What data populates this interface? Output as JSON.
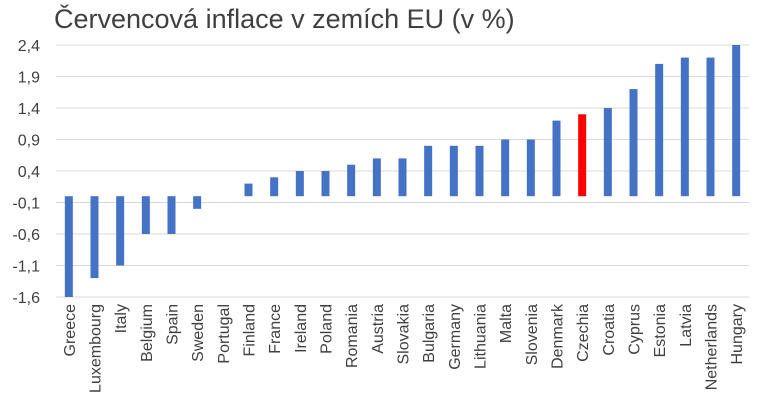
{
  "chart_data": {
    "type": "bar",
    "title": "Červencová inflace v zemích EU (v %)",
    "xlabel": "",
    "ylabel": "",
    "ylim": [
      -1.6,
      2.4
    ],
    "yticks": [
      "2,4",
      "1,9",
      "1,4",
      "0,9",
      "0,4",
      "-0,1",
      "-0,6",
      "-1,1",
      "-1,6"
    ],
    "grid": true,
    "legend": "none",
    "colors": {
      "default": "#4472C4",
      "highlight": "#FF0000",
      "grid": "#D9D9D9",
      "text": "#404040"
    },
    "highlight": "Czechia",
    "categories": [
      "Greece",
      "Luxembourg",
      "Italy",
      "Belgium",
      "Spain",
      "Sweden",
      "Portugal",
      "Finland",
      "France",
      "Ireland",
      "Poland",
      "Romania",
      "Austria",
      "Slovakia",
      "Bulgaria",
      "Germany",
      "Lithuania",
      "Malta",
      "Slovenia",
      "Denmark",
      "Czechia",
      "Croatia",
      "Cyprus",
      "Estonia",
      "Latvia",
      "Netherlands",
      "Hungary"
    ],
    "values": [
      -1.6,
      -1.3,
      -1.1,
      -0.6,
      -0.6,
      -0.2,
      0.0,
      0.2,
      0.3,
      0.4,
      0.4,
      0.5,
      0.6,
      0.6,
      0.8,
      0.8,
      0.8,
      0.9,
      0.9,
      1.2,
      1.3,
      1.4,
      1.7,
      2.1,
      2.2,
      2.2,
      2.4
    ]
  }
}
